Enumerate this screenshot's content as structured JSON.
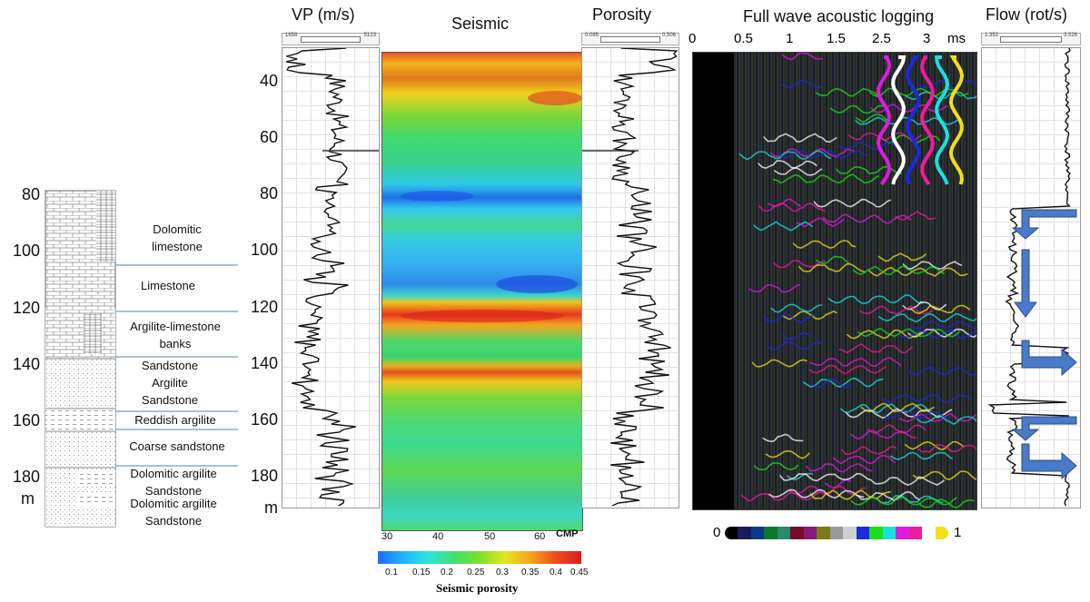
{
  "headers": {
    "vp": "VP (m/s)",
    "seismic": "Seismic",
    "porosity": "Porosity",
    "fwal": "Full wave acoustic logging",
    "flow": "Flow (rot/s)"
  },
  "left_depth_axis": {
    "ticks": [
      "80",
      "100",
      "120",
      "140",
      "160",
      "180"
    ],
    "unit": "m"
  },
  "mid_depth_axis": {
    "ticks": [
      "40",
      "60",
      "80",
      "100",
      "120",
      "140",
      "160",
      "180"
    ],
    "unit": "m"
  },
  "lithology": [
    {
      "name": "Dolomitic limestone",
      "line1": "Dolomitic",
      "line2": "limestone"
    },
    {
      "name": "Limestone",
      "line1": "Limestone"
    },
    {
      "name": "Argilite-limestone banks",
      "line1": "Argilite-limestone",
      "line2": "banks"
    },
    {
      "name": "Sandstone Argilite Sandstone",
      "line1": "Sandstone",
      "line2": "Argilite",
      "line3": "Sandstone"
    },
    {
      "name": "Reddish argilite",
      "line1": "Reddish argilite"
    },
    {
      "name": "Coarse sandstone",
      "line1": "Coarse sandstone"
    },
    {
      "name": "Dolomitic argilite Sandstone 1",
      "line1": "Dolomitic argilite",
      "line2": "Sandstone"
    },
    {
      "name": "Dolomitic argilite Sandstone 2",
      "line1": "Dolomitic argilite",
      "line2": "Sandstone"
    }
  ],
  "vp_scale": {
    "min": "1658",
    "max": "5123"
  },
  "porosity_scale": {
    "min": "0.085",
    "max": "0.506"
  },
  "flow_scale": {
    "min": "1.352",
    "max": "3.526"
  },
  "seismic_axis": {
    "ticks": [
      "30",
      "40",
      "50",
      "60"
    ],
    "unit": "CMP"
  },
  "seismic_colorbar": {
    "ticks": [
      "0.1",
      "0.15",
      "0.2",
      "0.25",
      "0.3",
      "0.35",
      "0.4",
      "0.45"
    ],
    "label": "Seismic porosity",
    "colors": [
      "#1e6cff",
      "#22b4ff",
      "#2ee6d6",
      "#40e070",
      "#7be02a",
      "#e6e61e",
      "#f5a51e",
      "#f04a1e",
      "#d81e1e"
    ]
  },
  "fwal_axis": {
    "ticks": [
      "0",
      "0.5",
      "1",
      "1.5",
      "2.5",
      "3"
    ],
    "unit": "ms"
  },
  "fwal_colorbar": {
    "min": "0",
    "max": "1",
    "colors": [
      "#000000",
      "#1a1a5a",
      "#0a3a8a",
      "#0a7a2a",
      "#2a8a6a",
      "#7a0a2a",
      "#8a1a7a",
      "#7a7a1a",
      "#9a9a9a",
      "#d0d0d0",
      "#1a2ae0",
      "#1ae01a",
      "#1ae0e0",
      "#e01ae0",
      "#f01aa0",
      "#ffffff",
      "#f0e01a"
    ]
  }
}
